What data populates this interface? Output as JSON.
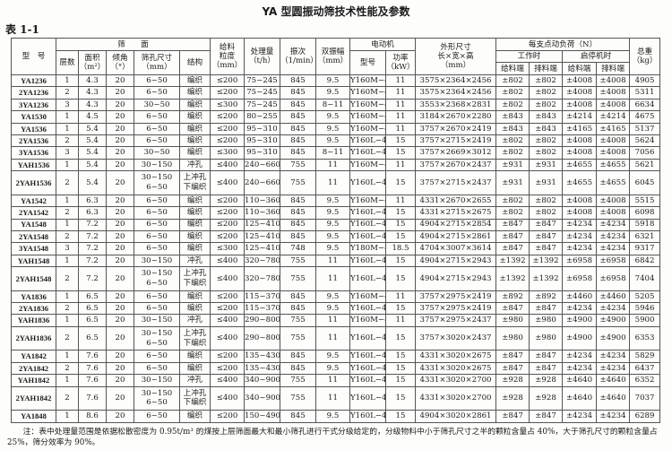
{
  "title": "YA 型圆振动筛技术性能及参数",
  "table_no": "表 1-1",
  "headers": {
    "model": "型　号",
    "screen_surface": "筛　　面",
    "layers": "层数",
    "area": "面积\n（m²）",
    "angle": "倾角\n（°）",
    "aperture": "筛孔尺寸\n（mm）",
    "structure": "结构",
    "feed_size": "给料\n粒度\n（mm）",
    "capacity": "处理量\n（t/h）",
    "frequency": "振次\n（1/min）",
    "amplitude": "双振幅\n（mm）",
    "motor": "电动机",
    "motor_model": "型号",
    "power": "功率\n（kW）",
    "dimensions": "外形尺寸\n长×宽×高\n（mm）",
    "load": "每支点动负荷（N）",
    "working": "工作时",
    "start_stop": "启停机时",
    "feed_end": "给料端",
    "discharge_end": "排料端",
    "weight": "总重\n（kg）"
  },
  "rows": [
    [
      "YA1236",
      "1",
      "4.3",
      "20",
      "6~50",
      "编织",
      "≤200",
      "75~245",
      "845",
      "9.5",
      "Y160M−4",
      "11",
      "3575×2364×2456",
      "±802",
      "±802",
      "±4008",
      "±4008",
      "4905"
    ],
    [
      "2YA1236",
      "2",
      "4.3",
      "20",
      "6~50",
      "编织",
      "≤200",
      "75~245",
      "845",
      "9.5",
      "Y160M−4",
      "11",
      "3575×2364×2456",
      "±802",
      "±802",
      "±4008",
      "±4008",
      "5311"
    ],
    [
      "3YA1236",
      "3",
      "4.3",
      "20",
      "30~50",
      "编织",
      "≤300",
      "75~245",
      "845",
      "8~11",
      "Y160M−4",
      "11",
      "3553×2368×2831",
      "±802",
      "±802",
      "±4008",
      "±4008",
      "6634"
    ],
    [
      "YA1530",
      "1",
      "4.5",
      "20",
      "6~50",
      "编织",
      "≤200",
      "80~255",
      "845",
      "9.5",
      "Y160M−4",
      "11",
      "3184×2670×2280",
      "±843",
      "±843",
      "±4214",
      "±4214",
      "4675"
    ],
    [
      "YA1536",
      "1",
      "5.4",
      "20",
      "6~50",
      "编织",
      "≤200",
      "95~310",
      "845",
      "9.5",
      "Y160M−4",
      "11",
      "3757×2670×2419",
      "±843",
      "±843",
      "±4165",
      "±4165",
      "5137"
    ],
    [
      "2YA1536",
      "2",
      "5.4",
      "20",
      "6~50",
      "编织",
      "≤200",
      "95~310",
      "845",
      "9.5",
      "Y160L−4",
      "15",
      "3757×2715×2419",
      "±802",
      "±802",
      "±4008",
      "±4008",
      "5624"
    ],
    [
      "3YA1536",
      "3",
      "5.4",
      "20",
      "30~50",
      "编织",
      "≤300",
      "95~310",
      "845",
      "8~11",
      "Y160L−4",
      "15",
      "3757×2669×3012",
      "±802",
      "±802",
      "±4008",
      "±4008",
      "7056"
    ],
    [
      "YAH1536",
      "1",
      "5.4",
      "20",
      "30~150",
      "冲孔",
      "≤400",
      "240~660",
      "755",
      "11",
      "Y160M−4",
      "11",
      "3757×2670×2437",
      "±931",
      "±931",
      "±4655",
      "±4655",
      "5621"
    ],
    [
      "2YAH1536",
      "2",
      "5.4",
      "20",
      "30~150\n6~50",
      "上冲孔\n下编织",
      "≤400",
      "240~660",
      "755",
      "11",
      "Y160L−4",
      "15",
      "3757×2715×2437",
      "±931",
      "±931",
      "±4655",
      "±4655",
      "6045"
    ],
    [
      "YA1542",
      "1",
      "6.3",
      "20",
      "6~50",
      "编织",
      "≤200",
      "110~360",
      "845",
      "9.5",
      "Y160M−4",
      "11",
      "4331×2670×2655",
      "±802",
      "±802",
      "±4008",
      "±4008",
      "5515"
    ],
    [
      "2YA1542",
      "2",
      "6.3",
      "20",
      "6~50",
      "编织",
      "≤200",
      "110~360",
      "845",
      "9.5",
      "Y160L−4",
      "15",
      "4331×2715×2675",
      "±802",
      "±802",
      "±4008",
      "±4008",
      "6098"
    ],
    [
      "YA1548",
      "1",
      "7.2",
      "20",
      "6~50",
      "编织",
      "≤200",
      "125~410",
      "845",
      "9.5",
      "Y160L−4",
      "15",
      "4904×2715×2854",
      "±847",
      "±847",
      "±4234",
      "±4234",
      "5918"
    ],
    [
      "2YA1548",
      "2",
      "7.2",
      "20",
      "6~50",
      "编织",
      "≤200",
      "125~410",
      "845",
      "9.5",
      "Y160L−4",
      "15",
      "4904×2715×2861",
      "±847",
      "±847",
      "±4234",
      "±4234",
      "6321"
    ],
    [
      "3YA1548",
      "3",
      "7.2",
      "20",
      "6~50",
      "编织",
      "≤300",
      "125~410",
      "748",
      "9.5",
      "Y180M−4",
      "18.5",
      "4704×3007×3614",
      "±847",
      "±847",
      "±4234",
      "±4234",
      "9317"
    ],
    [
      "YAH1548",
      "1",
      "7.2",
      "20",
      "30~150",
      "冲孔",
      "≤400",
      "320~780",
      "755",
      "11",
      "Y160L−4",
      "15",
      "4904×2715×2943",
      "±1392",
      "±1392",
      "±6958",
      "±6958",
      "6842"
    ],
    [
      "2YAH1548",
      "2",
      "7.2",
      "20",
      "30~150\n6~50",
      "上冲孔\n下编织",
      "≤400",
      "320~780",
      "755",
      "11",
      "Y160L−4",
      "15",
      "4904×2715×2943",
      "±1392",
      "±1392",
      "±6958",
      "±6958",
      "7404"
    ],
    [
      "YA1836",
      "1",
      "6.5",
      "20",
      "6~50",
      "编织",
      "≤200",
      "115~370",
      "845",
      "9.5",
      "Y160M−4",
      "11",
      "3757×2975×2419",
      "±892",
      "±892",
      "±4460",
      "±4460",
      "5205"
    ],
    [
      "2YA1836",
      "2",
      "6.5",
      "20",
      "6~50",
      "编织",
      "≤200",
      "115~370",
      "845",
      "9.5",
      "Y160L−4",
      "15",
      "3757×2975×2419",
      "±847",
      "±847",
      "±4234",
      "±4234",
      "5946"
    ],
    [
      "YAH1836",
      "1",
      "6.5",
      "20",
      "30~150",
      "冲孔",
      "≤400",
      "290~800",
      "755",
      "11",
      "Y160M−4",
      "11",
      "3757×2975×2437",
      "±980",
      "±980",
      "±4900",
      "±4900",
      "5900"
    ],
    [
      "2YAH1836",
      "2",
      "6.5",
      "20",
      "30~150\n6~50",
      "上冲孔\n下编织",
      "≤400",
      "290~800",
      "755",
      "11",
      "Y160L−4",
      "15",
      "3757×3020×2437",
      "±980",
      "±980",
      "±4900",
      "±4900",
      "6353"
    ],
    [
      "YA1842",
      "1",
      "7.6",
      "20",
      "6~50",
      "编织",
      "≤200",
      "135~430",
      "845",
      "9.5",
      "Y160L−4",
      "15",
      "4331×3020×2675",
      "±847",
      "±847",
      "±4234",
      "±4234",
      "5829"
    ],
    [
      "2YA1842",
      "2",
      "7.6",
      "20",
      "6~50",
      "编织",
      "≤200",
      "135~430",
      "845",
      "9.5",
      "Y160L−4",
      "15",
      "4331×3020×2675",
      "±847",
      "±847",
      "±4234",
      "±4234",
      "6437"
    ],
    [
      "YAH1842",
      "1",
      "7.6",
      "20",
      "30~150",
      "冲孔",
      "≤400",
      "340~900",
      "755",
      "11",
      "Y160L−4",
      "15",
      "4331×3020×2700",
      "±928",
      "±928",
      "±4640",
      "±4640",
      "6352"
    ],
    [
      "2YAH1842",
      "2",
      "7.6",
      "20",
      "30~150\n6~50",
      "上冲孔\n下编织",
      "≤400",
      "340~900",
      "755",
      "11",
      "Y160L−4",
      "15",
      "4331×3020×2700",
      "±928",
      "±928",
      "±4640",
      "±4640",
      "7037"
    ],
    [
      "YA1848",
      "1",
      "8.6",
      "20",
      "6~50",
      "编织",
      "≤200",
      "150~490",
      "845",
      "9.5",
      "Y160L−4",
      "15",
      "4904×3020×2861",
      "±847",
      "±847",
      "±4234",
      "±4234",
      "6289"
    ]
  ],
  "note": "注：表中处理量范围是依据松散密度为 0.95t/m³ 的煤按上层筛面最大和最小筛孔进行干式分级给定的，分级物料中小于筛孔尺寸之半的颗粒含量占 40%，大于筛孔尺寸的颗粒含量占 25%，筛分效率为 90%。"
}
